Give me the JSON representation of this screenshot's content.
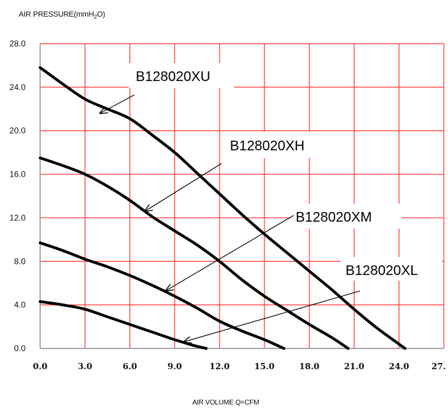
{
  "chart_data": {
    "type": "line",
    "ylabel_prefix": "AIR PRESSURE(mmH",
    "ylabel_sub": "2",
    "ylabel_suffix": "O)",
    "xlabel": "AIR VOLUME  Q=CFM",
    "xlim": [
      0,
      27
    ],
    "ylim": [
      0,
      28
    ],
    "x_ticks": [
      "0.0",
      "3.0",
      "6.0",
      "9.0",
      "12.0",
      "15.0",
      "18.0",
      "21.0",
      "24.0",
      "27."
    ],
    "y_ticks": [
      "0.0",
      "4.0",
      "8.0",
      "12.0",
      "16.0",
      "20.0",
      "24.0",
      "28.0"
    ],
    "grid": true,
    "colors": {
      "grid": "#ff3b3b",
      "curve": "#000000",
      "axis": "#9a9a9a"
    },
    "series": [
      {
        "name": "B128020XU",
        "x": [
          0,
          1.5,
          3,
          4.5,
          6,
          7.5,
          9,
          10.5,
          12,
          13.5,
          15,
          16.5,
          18,
          19.5,
          21,
          22.5,
          24.4
        ],
        "y": [
          25.8,
          24.3,
          22.9,
          22.0,
          21.1,
          19.6,
          18.0,
          16.1,
          14.2,
          12.3,
          10.5,
          8.8,
          7.1,
          5.4,
          3.6,
          1.9,
          0.0
        ]
      },
      {
        "name": "B128020XH",
        "x": [
          0,
          1.5,
          3,
          4.5,
          6,
          7.5,
          9,
          10.5,
          12,
          13.5,
          15,
          16.5,
          18,
          19.5,
          20.6
        ],
        "y": [
          17.5,
          16.8,
          16.0,
          14.9,
          13.6,
          12.1,
          10.8,
          9.5,
          8.0,
          6.3,
          4.8,
          3.5,
          2.2,
          1.0,
          0.0
        ]
      },
      {
        "name": "B128020XM",
        "x": [
          0,
          1.5,
          3,
          4.5,
          6,
          7.5,
          9,
          10.5,
          12,
          13.5,
          15,
          16.3
        ],
        "y": [
          9.7,
          9.0,
          8.2,
          7.5,
          6.7,
          5.8,
          4.8,
          3.7,
          2.5,
          1.6,
          0.8,
          0.0
        ]
      },
      {
        "name": "B128020XL",
        "x": [
          0,
          1.5,
          3,
          4.5,
          6,
          7.5,
          9,
          10.2,
          11.1
        ],
        "y": [
          4.3,
          4.0,
          3.6,
          2.9,
          2.2,
          1.5,
          0.8,
          0.3,
          0.0
        ]
      }
    ],
    "annotations": [
      {
        "text": "B128020XU",
        "series": "B128020XU",
        "point": [
          4.0,
          21.6
        ]
      },
      {
        "text": "B128020XH",
        "series": "B128020XH",
        "point": [
          7.0,
          12.6
        ]
      },
      {
        "text": "B128020XM",
        "series": "B128020XM",
        "point": [
          8.4,
          5.3
        ]
      },
      {
        "text": "B128020XL",
        "series": "B128020XL",
        "point": [
          9.6,
          0.6
        ]
      }
    ]
  }
}
